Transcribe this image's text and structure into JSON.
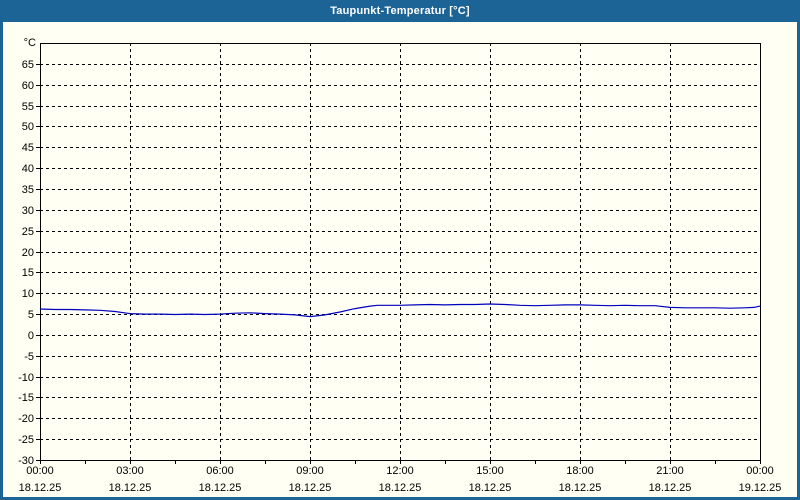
{
  "window": {
    "title": "Taupunkt-Temperatur [°C]",
    "titlebar_color": "#1d6496",
    "border_color": "#1d6496",
    "background_color": "#fffff4"
  },
  "chart_data": {
    "type": "line",
    "title": "Taupunkt-Temperatur [°C]",
    "xlabel": "",
    "ylabel": "°C",
    "y_unit_label": "°C",
    "ylim": [
      -30,
      70
    ],
    "y_tick_step": 5,
    "y_label_min": -30,
    "y_label_max": 65,
    "xlim_hours": [
      0,
      24
    ],
    "x_gridline_step_hours": 3,
    "x_minor_tick_step_hours": 1.5,
    "grid": "dashed",
    "legend": "none",
    "line_color": "#0000c0",
    "axis_color": "#000000",
    "x_ticks": [
      {
        "time": "00:00",
        "date": "18.12.25"
      },
      {
        "time": "03:00",
        "date": "18.12.25"
      },
      {
        "time": "06:00",
        "date": "18.12.25"
      },
      {
        "time": "09:00",
        "date": "18.12.25"
      },
      {
        "time": "12:00",
        "date": "18.12.25"
      },
      {
        "time": "15:00",
        "date": "18.12.25"
      },
      {
        "time": "18:00",
        "date": "18.12.25"
      },
      {
        "time": "21:00",
        "date": "18.12.25"
      },
      {
        "time": "00:00",
        "date": "19.12.25"
      }
    ],
    "series": [
      {
        "name": "Taupunkt-Temperatur",
        "points_hours_degC": [
          [
            0,
            6.2
          ],
          [
            0.5,
            6.1
          ],
          [
            1,
            6.1
          ],
          [
            1.5,
            6.0
          ],
          [
            2,
            5.9
          ],
          [
            2.5,
            5.6
          ],
          [
            3,
            5.1
          ],
          [
            3.5,
            5.0
          ],
          [
            4,
            5.0
          ],
          [
            4.5,
            4.9
          ],
          [
            5,
            5.0
          ],
          [
            5.5,
            4.9
          ],
          [
            6,
            5.0
          ],
          [
            6.5,
            5.2
          ],
          [
            7,
            5.3
          ],
          [
            7.5,
            5.1
          ],
          [
            8,
            5.0
          ],
          [
            8.5,
            4.8
          ],
          [
            9,
            4.4
          ],
          [
            9.5,
            4.8
          ],
          [
            10,
            5.5
          ],
          [
            10.5,
            6.3
          ],
          [
            11,
            6.9
          ],
          [
            11.25,
            7.1
          ],
          [
            11.5,
            7.1
          ],
          [
            12,
            7.1
          ],
          [
            12.5,
            7.2
          ],
          [
            13,
            7.3
          ],
          [
            13.5,
            7.2
          ],
          [
            14,
            7.3
          ],
          [
            14.5,
            7.3
          ],
          [
            15,
            7.4
          ],
          [
            15.5,
            7.3
          ],
          [
            16,
            7.1
          ],
          [
            16.5,
            7.0
          ],
          [
            17,
            7.1
          ],
          [
            17.5,
            7.2
          ],
          [
            18,
            7.2
          ],
          [
            18.5,
            7.1
          ],
          [
            19,
            7.0
          ],
          [
            19.5,
            7.1
          ],
          [
            20,
            7.0
          ],
          [
            20.5,
            7.0
          ],
          [
            21,
            6.6
          ],
          [
            21.5,
            6.5
          ],
          [
            22,
            6.5
          ],
          [
            22.5,
            6.5
          ],
          [
            23,
            6.4
          ],
          [
            23.5,
            6.5
          ],
          [
            23.8,
            6.6
          ],
          [
            24,
            6.9
          ]
        ]
      }
    ]
  }
}
